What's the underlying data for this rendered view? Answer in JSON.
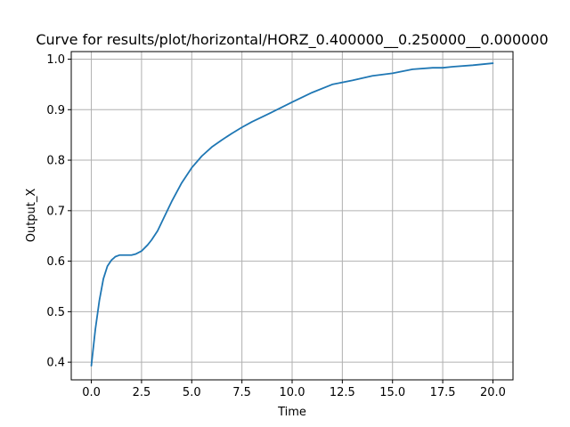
{
  "chart_data": {
    "type": "line",
    "title": "Curve for results/plot/horizontal/HORZ_0.400000__0.250000__0.000000",
    "xlabel": "Time",
    "ylabel": "Output_X",
    "xlim": [
      -1.0,
      21.0
    ],
    "ylim": [
      0.365,
      1.015
    ],
    "xticks": [
      0.0,
      2.5,
      5.0,
      7.5,
      10.0,
      12.5,
      15.0,
      17.5,
      20.0
    ],
    "xtick_labels": [
      "0.0",
      "2.5",
      "5.0",
      "7.5",
      "10.0",
      "12.5",
      "15.0",
      "17.5",
      "20.0"
    ],
    "yticks": [
      0.4,
      0.5,
      0.6,
      0.7,
      0.8,
      0.9,
      1.0
    ],
    "ytick_labels": [
      "0.4",
      "0.5",
      "0.6",
      "0.7",
      "0.8",
      "0.9",
      "1.0"
    ],
    "grid": true,
    "colors": {
      "line": "#1f77b4"
    },
    "series": [
      {
        "x": [
          0.0,
          0.2,
          0.4,
          0.6,
          0.8,
          1.0,
          1.2,
          1.4,
          1.6,
          1.8,
          2.0,
          2.2,
          2.5,
          2.8,
          3.0,
          3.3,
          3.6,
          4.0,
          4.5,
          5.0,
          5.5,
          6.0,
          6.5,
          7.0,
          7.5,
          8.0,
          9.0,
          10.0,
          11.0,
          12.0,
          13.0,
          14.0,
          15.0,
          16.0,
          17.0,
          17.5,
          18.0,
          19.0,
          20.0
        ],
        "y": [
          0.393,
          0.465,
          0.522,
          0.565,
          0.59,
          0.602,
          0.609,
          0.612,
          0.612,
          0.612,
          0.612,
          0.614,
          0.62,
          0.632,
          0.642,
          0.66,
          0.685,
          0.718,
          0.755,
          0.785,
          0.808,
          0.826,
          0.84,
          0.853,
          0.865,
          0.876,
          0.895,
          0.915,
          0.934,
          0.95,
          0.958,
          0.967,
          0.972,
          0.98,
          0.983,
          0.983,
          0.985,
          0.988,
          0.992
        ]
      }
    ]
  }
}
